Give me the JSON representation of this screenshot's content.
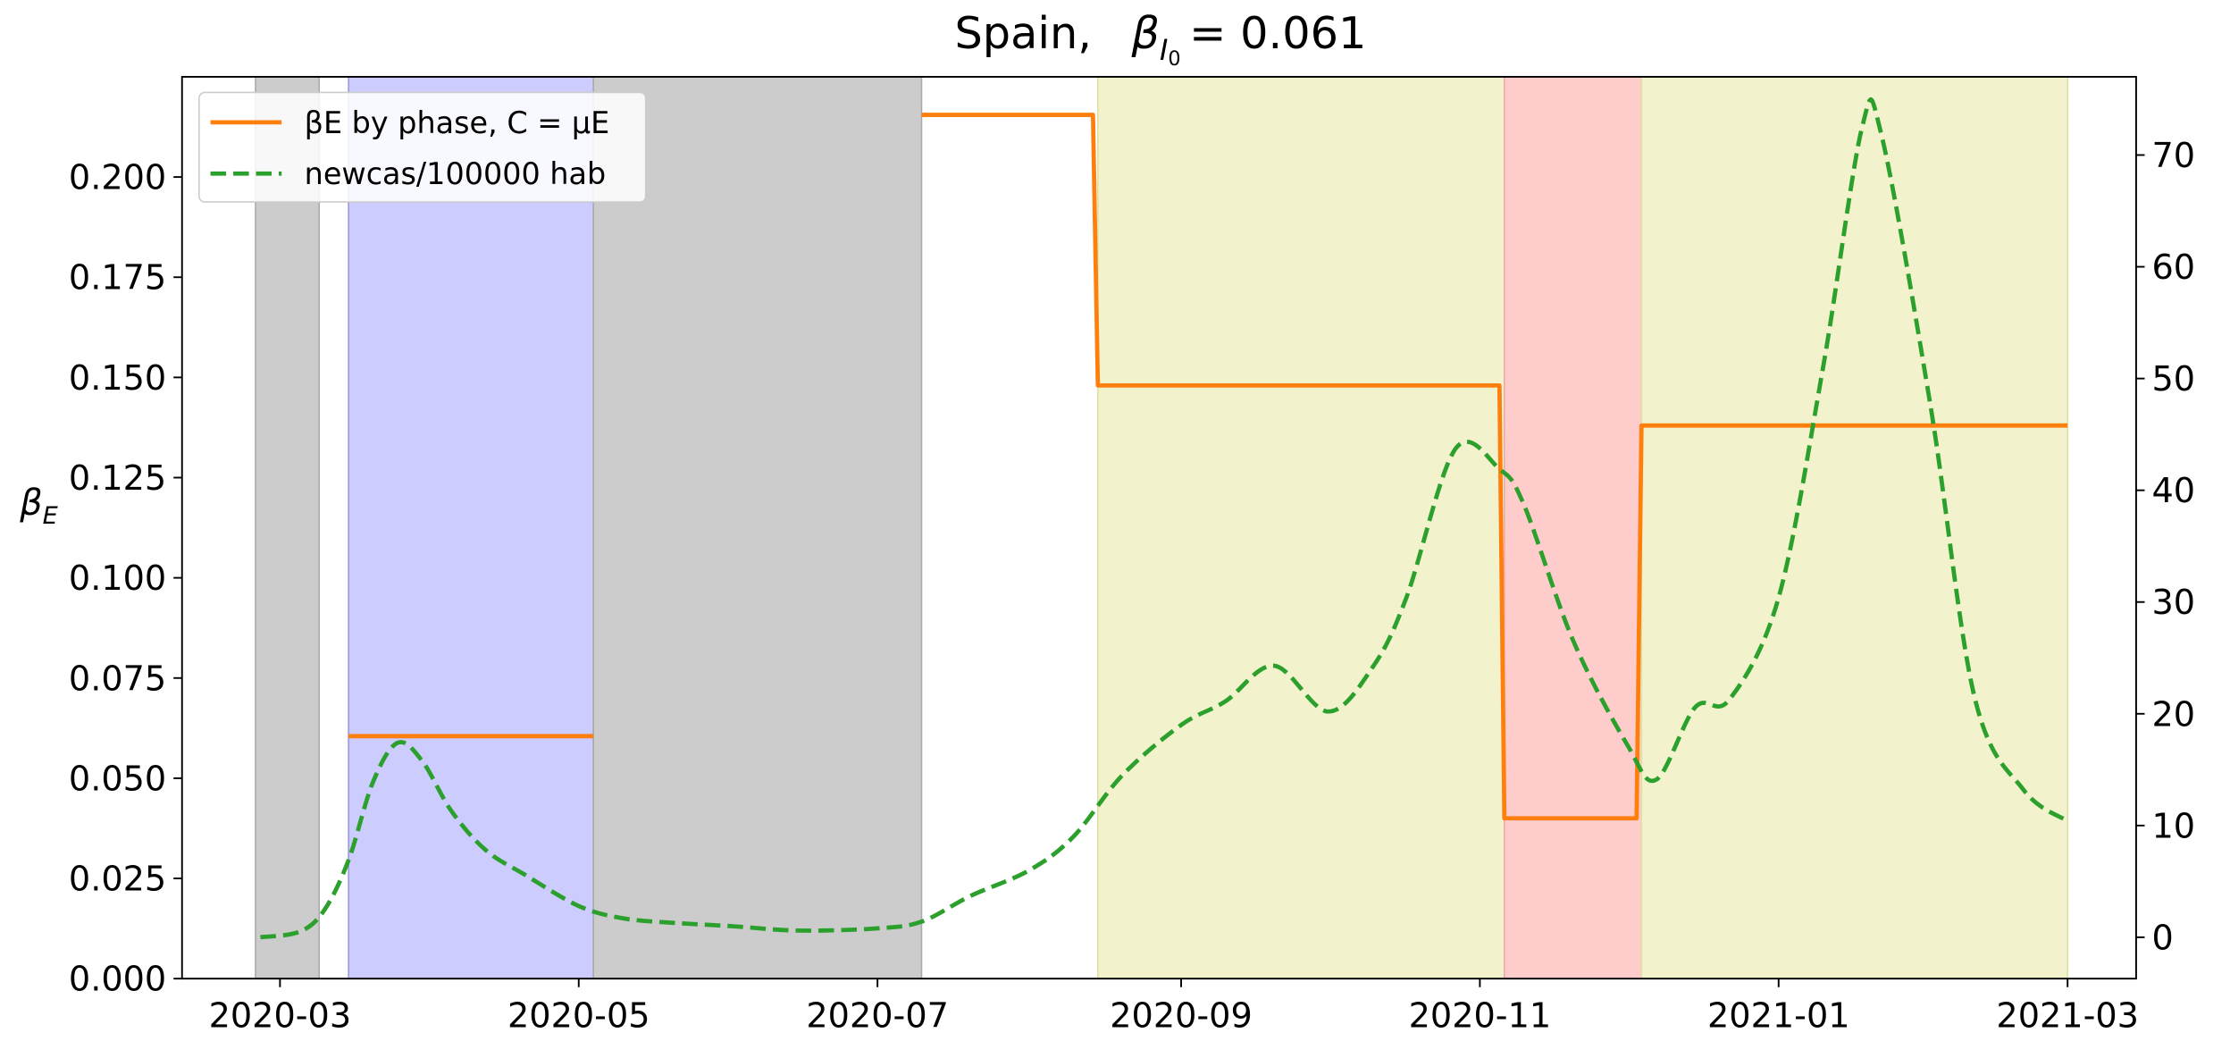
{
  "chart_data": {
    "type": "line",
    "title": {
      "country": "Spain,",
      "symbol": "β",
      "sub": "I",
      "subsub": "0",
      "rhs": "= 0.061"
    },
    "ylabel": {
      "symbol": "β",
      "sub": "E"
    },
    "xlim": [
      "2020-02-10",
      "2021-03-15"
    ],
    "xticks": [
      "2020-03",
      "2020-05",
      "2020-07",
      "2020-09",
      "2020-11",
      "2021-01",
      "2021-03"
    ],
    "ylim": [
      0,
      0.225
    ],
    "yticks": [
      {
        "value": 0,
        "label": "0.000"
      },
      {
        "value": 0.025,
        "label": "0.025"
      },
      {
        "value": 0.05,
        "label": "0.050"
      },
      {
        "value": 0.075,
        "label": "0.075"
      },
      {
        "value": 0.1,
        "label": "0.100"
      },
      {
        "value": 0.125,
        "label": "0.125"
      },
      {
        "value": 0.15,
        "label": "0.150"
      },
      {
        "value": 0.175,
        "label": "0.175"
      },
      {
        "value": 0.2,
        "label": "0.200"
      }
    ],
    "y2lim": [
      -3.7,
      77
    ],
    "y2ticks": [
      0,
      10,
      20,
      30,
      40,
      50,
      60,
      70
    ],
    "legend": "upper left",
    "spans": [
      {
        "start": "2020-02-25",
        "end": "2020-03-09",
        "color": "#cccccc",
        "edge": "#aaaaaa"
      },
      {
        "start": "2020-03-15",
        "end": "2020-05-04",
        "color": "#ccccff",
        "edge": "#9999dd"
      },
      {
        "start": "2020-05-04",
        "end": "2020-07-10",
        "color": "#cccccc",
        "edge": "#aaaaaa"
      },
      {
        "start": "2020-08-15",
        "end": "2020-11-06",
        "color": "#f2f2cc",
        "edge": "#e0e0a0"
      },
      {
        "start": "2020-11-06",
        "end": "2020-12-04",
        "color": "#ffcccc",
        "edge": "#eeaaaa"
      },
      {
        "start": "2020-12-04",
        "end": "2021-03-01",
        "color": "#f2f2cc",
        "edge": "#e0e0a0"
      }
    ],
    "series": [
      {
        "name": "βE by phase, C = μE",
        "color": "#ff7f0e",
        "dash": "solid",
        "axis": "y",
        "x": [
          "2020-03-15",
          "2020-05-04",
          "2020-06-01",
          "2020-07-10",
          "2020-08-14",
          "2020-08-15",
          "2020-11-05",
          "2020-11-06",
          "2020-12-03",
          "2020-12-04",
          "2021-03-01"
        ],
        "values": [
          0.0605,
          0.0605,
          null,
          0.2155,
          0.2155,
          0.148,
          0.148,
          0.04,
          0.04,
          0.138,
          0.138
        ]
      },
      {
        "name": "newcas/100000 hab",
        "color": "#2ca02c",
        "dash": "dashed",
        "axis": "y2",
        "x": [
          "2020-02-26",
          "2020-03-05",
          "2020-03-10",
          "2020-03-15",
          "2020-03-20",
          "2020-03-25",
          "2020-03-30",
          "2020-04-05",
          "2020-04-12",
          "2020-04-20",
          "2020-05-01",
          "2020-05-10",
          "2020-05-20",
          "2020-06-01",
          "2020-06-15",
          "2020-07-01",
          "2020-07-10",
          "2020-07-20",
          "2020-08-01",
          "2020-08-10",
          "2020-08-20",
          "2020-09-01",
          "2020-09-10",
          "2020-09-20",
          "2020-10-01",
          "2020-10-10",
          "2020-10-17",
          "2020-10-27",
          "2020-11-05",
          "2020-11-10",
          "2020-11-20",
          "2020-12-01",
          "2020-12-07",
          "2020-12-15",
          "2020-12-22",
          "2021-01-01",
          "2021-01-10",
          "2021-01-18",
          "2021-01-22",
          "2021-02-01",
          "2021-02-10",
          "2021-02-20",
          "2021-03-01"
        ],
        "values": [
          0,
          0.5,
          2.4,
          6.9,
          13.9,
          17.4,
          15.8,
          11.3,
          7.8,
          5.6,
          2.8,
          1.7,
          1.3,
          1.0,
          0.6,
          0.8,
          1.4,
          3.7,
          6.0,
          9.0,
          14.5,
          19.0,
          21.1,
          24.3,
          20.2,
          24.1,
          30.4,
          43.7,
          41.9,
          38.7,
          26.6,
          17.3,
          14.1,
          20.6,
          21.3,
          30.4,
          50.8,
          72.4,
          71.8,
          47.6,
          21.5,
          13.2,
          10.4
        ]
      }
    ]
  }
}
